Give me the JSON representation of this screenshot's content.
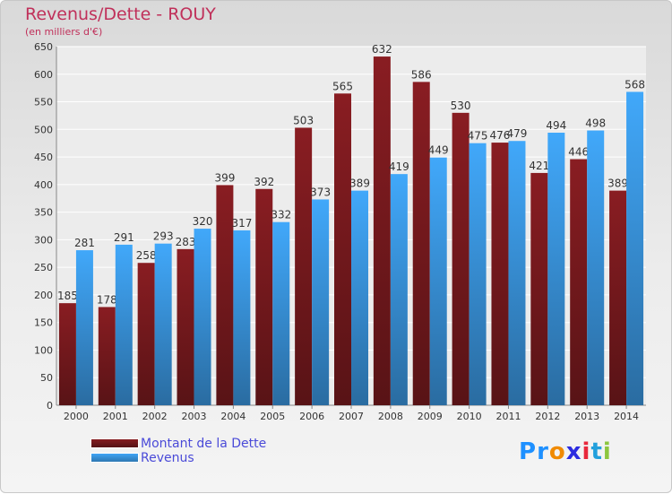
{
  "chart_data": {
    "type": "bar",
    "title": "Revenus/Dette - ROUY",
    "subtitle": "(en milliers d'€)",
    "categories": [
      "2000",
      "2001",
      "2002",
      "2003",
      "2004",
      "2005",
      "2006",
      "2007",
      "2008",
      "2009",
      "2010",
      "2011",
      "2012",
      "2013",
      "2014"
    ],
    "series": [
      {
        "name": "Montant de la Dette",
        "color": "#7a1a1e",
        "values": [
          185,
          178,
          258,
          283,
          399,
          392,
          503,
          565,
          632,
          586,
          530,
          476,
          421,
          446,
          389
        ]
      },
      {
        "name": "Revenus",
        "color": "#3a96df",
        "values": [
          281,
          291,
          293,
          320,
          317,
          332,
          373,
          389,
          419,
          449,
          475,
          479,
          494,
          498,
          568
        ]
      }
    ],
    "ylim": [
      0,
      650
    ],
    "yticks": [
      0,
      50,
      100,
      150,
      200,
      250,
      300,
      350,
      400,
      450,
      500,
      550,
      600,
      650
    ],
    "grid": true,
    "legend_position": "bottom-left"
  },
  "logo": {
    "text": "Proxiti",
    "letters": [
      "P",
      "r",
      "o",
      "x",
      "i",
      "t",
      "i"
    ],
    "colors": [
      "#1e90ff",
      "#1e90ff",
      "#f08a00",
      "#2c2ce0",
      "#e8283c",
      "#22a0dc",
      "#8cc63f"
    ]
  }
}
